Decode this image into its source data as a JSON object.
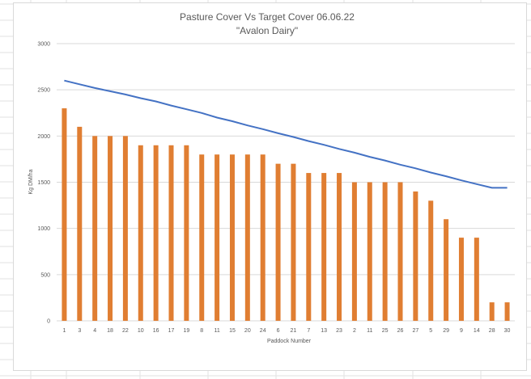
{
  "chart_data": {
    "type": "bar",
    "title": "Pasture Cover Vs Target Cover 06.06.22",
    "subtitle": "\"Avalon Dairy\"",
    "xlabel": "Paddock Number",
    "ylabel": "Kg DM/ha",
    "ylim": [
      0,
      3000
    ],
    "yticks": [
      "0",
      "500",
      "1000",
      "1500",
      "2000",
      "2500",
      "3000"
    ],
    "grid": true,
    "categories": [
      "1",
      "3",
      "4",
      "18",
      "22",
      "10",
      "16",
      "17",
      "19",
      "8",
      "11",
      "15",
      "20",
      "24",
      "6",
      "21",
      "7",
      "13",
      "23",
      "2",
      "11",
      "25",
      "26",
      "27",
      "5",
      "29",
      "9",
      "14",
      "28",
      "30"
    ],
    "series": [
      {
        "type": "bar",
        "color": "#E07E32",
        "values": [
          2300,
          2100,
          2000,
          2000,
          2000,
          1900,
          1900,
          1900,
          1900,
          1800,
          1800,
          1800,
          1800,
          1800,
          1700,
          1700,
          1600,
          1600,
          1600,
          1500,
          1500,
          1500,
          1500,
          1400,
          1300,
          1100,
          900,
          900,
          200,
          200
        ]
      },
      {
        "type": "line",
        "color": "#4472C4",
        "values": [
          2600,
          2560,
          2520,
          2485,
          2450,
          2410,
          2375,
          2330,
          2290,
          2250,
          2200,
          2160,
          2115,
          2075,
          2030,
          1990,
          1945,
          1905,
          1860,
          1820,
          1775,
          1735,
          1690,
          1650,
          1605,
          1565,
          1520,
          1480,
          1440,
          1440
        ]
      }
    ]
  }
}
